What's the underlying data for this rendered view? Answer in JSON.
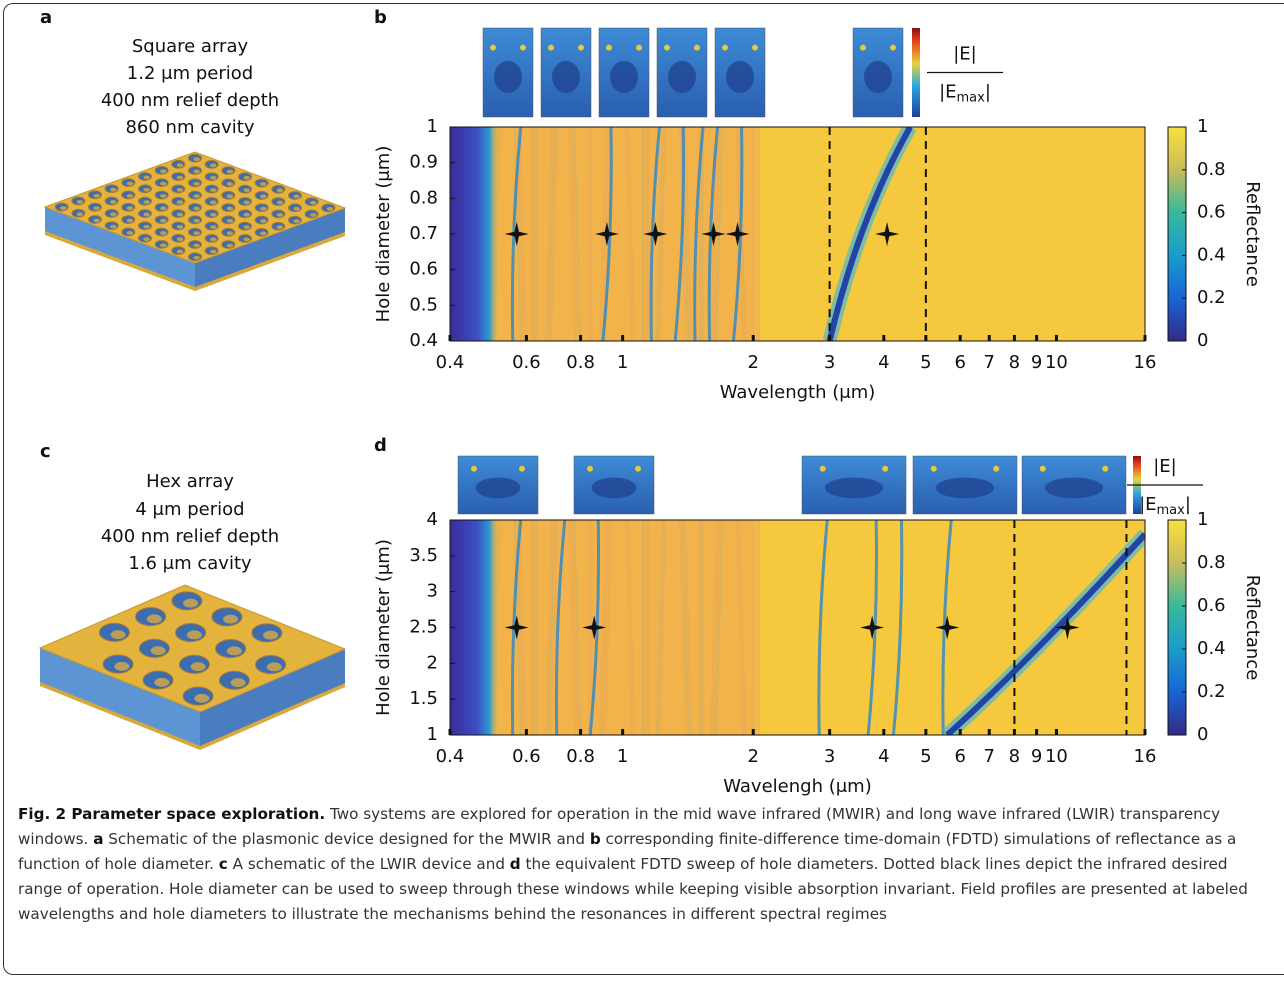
{
  "panels": [
    {
      "label": "a",
      "lines": [
        "Square array",
        "1.2 μm period",
        "400 nm relief depth",
        "860 nm cavity"
      ]
    },
    {
      "label": "c",
      "lines": [
        "Hex array",
        "4 μm period",
        "400 nm relief depth",
        "1.6 μm cavity"
      ]
    }
  ],
  "chart_data": [
    {
      "type": "heatmap",
      "panel": "b",
      "xlabel": "Wavelength (μm)",
      "ylabel": "Hole diameter (μm)",
      "xscale": "log",
      "xlim": [
        0.4,
        16
      ],
      "xticks": [
        0.4,
        0.6,
        0.8,
        1,
        2,
        3,
        4,
        5,
        6,
        7,
        8,
        9,
        10,
        16
      ],
      "ylim": [
        0.4,
        1
      ],
      "yticks": [
        0.4,
        0.5,
        0.6,
        0.7,
        0.8,
        0.9,
        1
      ],
      "colorbar": {
        "label": "Reflectance",
        "lim": [
          0,
          1
        ],
        "ticks": [
          0,
          0.2,
          0.4,
          0.6,
          0.8,
          1
        ]
      },
      "markers": {
        "x": [
          0.57,
          0.92,
          1.19,
          1.62,
          1.84,
          4.07
        ],
        "y": [
          0.7,
          0.7,
          0.7,
          0.7,
          0.7,
          0.7
        ]
      },
      "reference_lines": [
        3,
        5
      ],
      "field_label": {
        "numerator": "|E|",
        "denominator": [
          "|E",
          "max",
          "|"
        ]
      }
    },
    {
      "type": "heatmap",
      "panel": "d",
      "xlabel": "Wavelengh (μm)",
      "ylabel": "Hole diameter (μm)",
      "xscale": "log",
      "xlim": [
        0.4,
        16
      ],
      "xticks": [
        0.4,
        0.6,
        0.8,
        1,
        2,
        3,
        4,
        5,
        6,
        7,
        8,
        9,
        10,
        16
      ],
      "ylim": [
        1,
        4
      ],
      "yticks": [
        1,
        1.5,
        2,
        2.5,
        3,
        3.5,
        4
      ],
      "colorbar": {
        "label": "Reflectance",
        "lim": [
          0,
          1
        ],
        "ticks": [
          0,
          0.2,
          0.4,
          0.6,
          0.8,
          1
        ]
      },
      "markers": {
        "x": [
          0.57,
          0.86,
          3.76,
          5.6,
          10.6
        ],
        "y": [
          2.5,
          2.5,
          2.5,
          2.5,
          2.5
        ]
      },
      "reference_lines": [
        8,
        14.5
      ],
      "field_label": {
        "numerator": "|E|",
        "denominator": [
          "|E",
          "max",
          "|"
        ]
      }
    }
  ],
  "caption": {
    "title": "Fig. 2 Parameter space exploration.",
    "text": [
      " Two systems are explored for operation in the mid wave infrared (MWIR) and long wave infrared (LWIR) transparency windows. ",
      "a",
      " Schematic of the plasmonic device designed for the MWIR and ",
      "b",
      " corresponding finite-difference time-domain (FDTD) simulations of reflectance as a function of hole diameter. ",
      "c",
      " A schematic of the LWIR device and ",
      "d",
      " the equivalent FDTD sweep of hole diameters. Dotted black lines depict the infrared desired range of operation. Hole diameter can be used to sweep through these windows while keeping visible absorption invariant. Field profiles are presented at labeled wavelengths and hole diameters to illustrate the mechanisms behind the resonances in different spectral regimes"
    ]
  }
}
